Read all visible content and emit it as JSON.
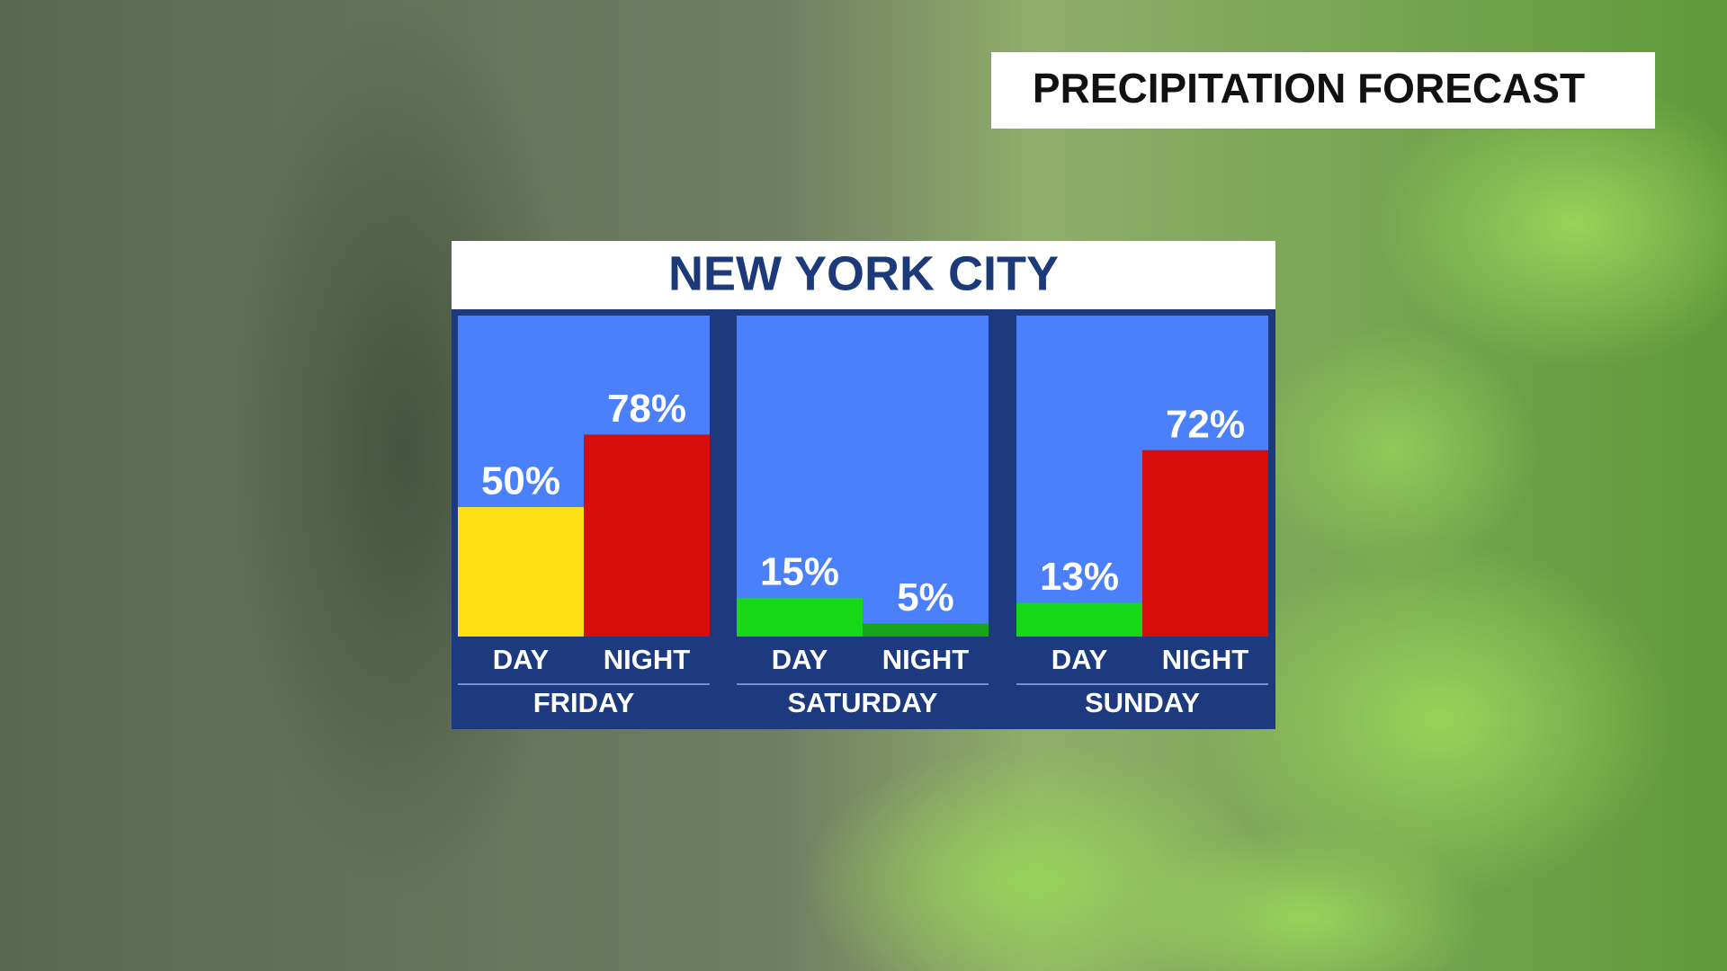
{
  "chart_data": {
    "type": "bar",
    "header": "PRECIPITATION FORECAST",
    "title": "NEW YORK CITY",
    "categories": [
      "FRIDAY",
      "SATURDAY",
      "SUNDAY"
    ],
    "series": [
      {
        "name": "DAY",
        "values": [
          50,
          15,
          13
        ],
        "value_labels": [
          "50%",
          "15%",
          "13%"
        ],
        "colors": [
          "#ffe014",
          "#16d816",
          "#16d816"
        ]
      },
      {
        "name": "NIGHT",
        "values": [
          78,
          5,
          72
        ],
        "value_labels": [
          "78%",
          "5%",
          "72%"
        ],
        "colors": [
          "#d90c0c",
          "#19a519",
          "#d90c0c"
        ]
      }
    ]
  }
}
